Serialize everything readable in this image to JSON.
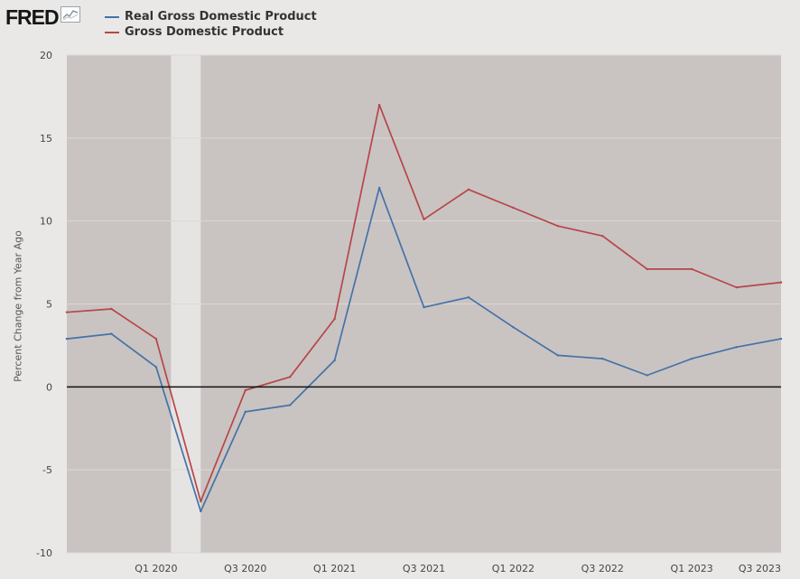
{
  "header": {
    "logo_text": "FRED",
    "logo_icon": "trend-chart-icon"
  },
  "colors": {
    "plot_background": "#c9c4c2",
    "page_background": "#e9e8e6",
    "recession_band": "#e6e4e2",
    "gridline": "#dcd8d6",
    "zero_line": "#111111",
    "real_gdp": "#4572a7",
    "nominal_gdp": "#b8454a"
  },
  "chart_data": {
    "type": "line",
    "ylabel": "Percent Change from Year Ago",
    "ylim": [
      -10,
      20
    ],
    "yticks": [
      20,
      15,
      10,
      5,
      0,
      -5,
      -10
    ],
    "x": [
      "Q3 2019",
      "Q4 2019",
      "Q1 2020",
      "Q2 2020",
      "Q3 2020",
      "Q4 2020",
      "Q1 2021",
      "Q2 2021",
      "Q3 2021",
      "Q4 2021",
      "Q1 2022",
      "Q2 2022",
      "Q3 2022",
      "Q4 2022",
      "Q1 2023",
      "Q2 2023",
      "Q3 2023"
    ],
    "xtick_labels": [
      "Q1 2020",
      "Q3 2020",
      "Q1 2021",
      "Q3 2021",
      "Q1 2022",
      "Q3 2022",
      "Q1 2023",
      "Q3 2023"
    ],
    "recession": {
      "start": "Q2 2020",
      "label": ""
    },
    "grid": true,
    "legend_position": "top-left",
    "series": [
      {
        "name": "Real Gross Domestic Product",
        "color": "#4572a7",
        "values": [
          2.9,
          3.2,
          1.2,
          -7.5,
          -1.5,
          -1.1,
          1.6,
          12.0,
          4.8,
          5.4,
          3.6,
          1.9,
          1.7,
          0.7,
          1.7,
          2.4,
          2.9
        ]
      },
      {
        "name": "Gross Domestic Product",
        "color": "#b8454a",
        "values": [
          4.5,
          4.7,
          2.9,
          -6.9,
          -0.2,
          0.6,
          4.1,
          17.0,
          10.1,
          11.9,
          10.8,
          9.7,
          9.1,
          7.1,
          7.1,
          6.0,
          6.3
        ]
      }
    ]
  }
}
